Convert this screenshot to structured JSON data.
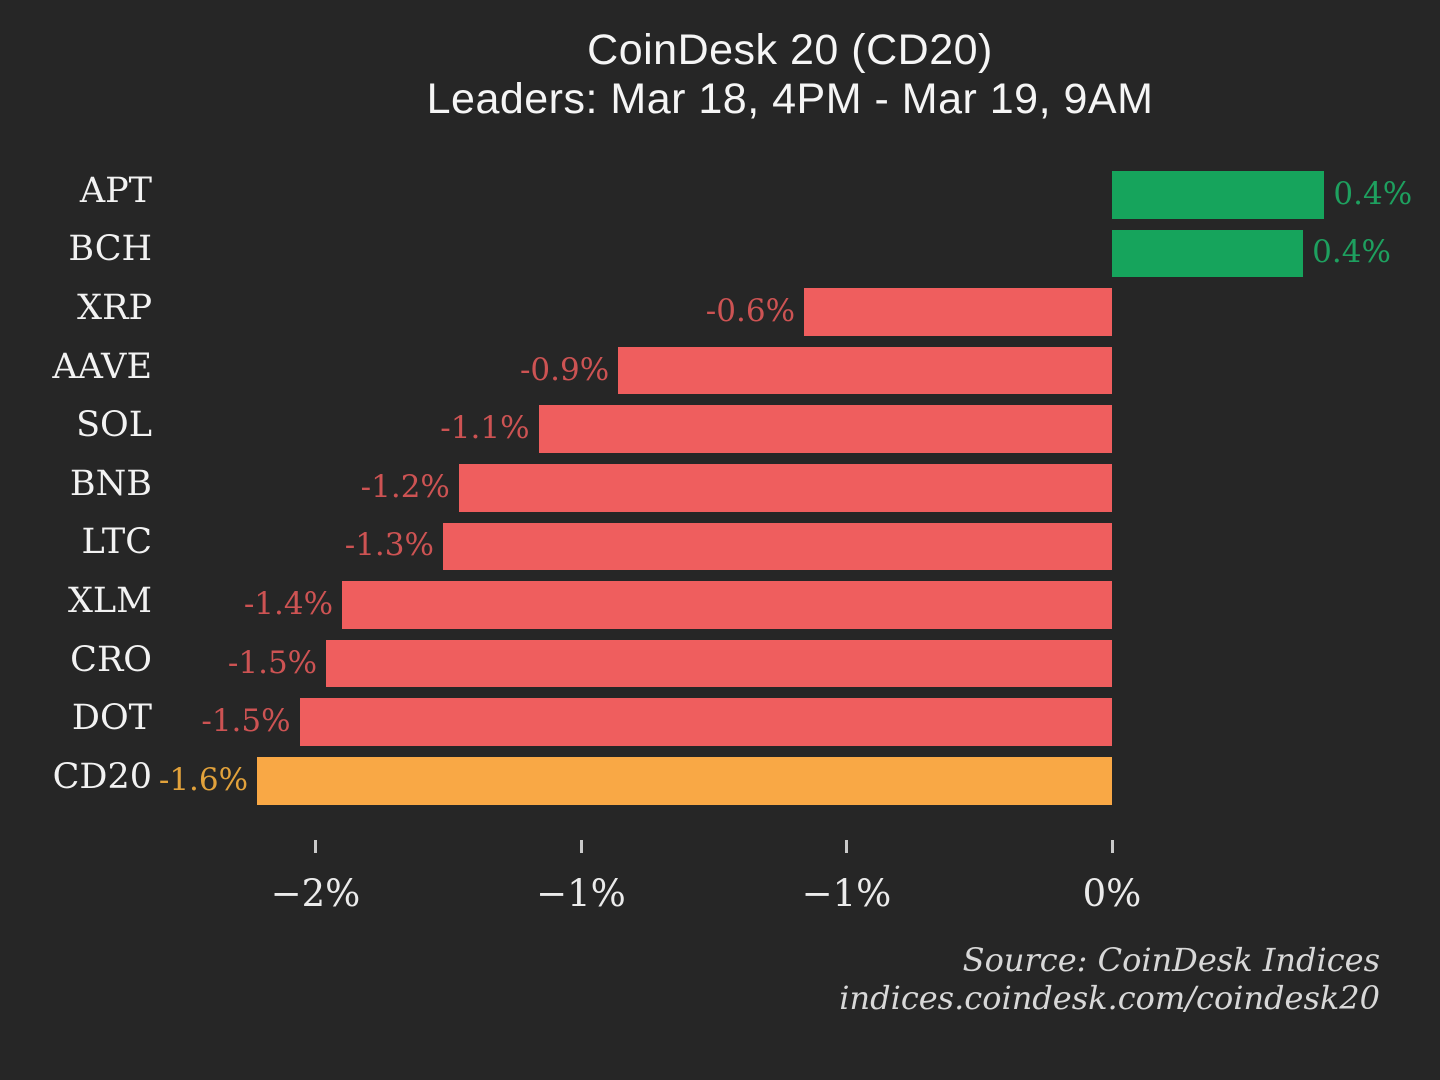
{
  "title": "CoinDesk 20 (CD20)",
  "subtitle": "Leaders: Mar 18, 4PM - Mar 19, 9AM",
  "source": {
    "line1": "Source: CoinDesk Indices",
    "line2": "indices.coindesk.com/coindesk20"
  },
  "colors": {
    "background": "#262626",
    "bar_negative": "#ef5e5e",
    "bar_positive": "#16a45c",
    "bar_highlight": "#f9a845",
    "label_negative": "#cd5353",
    "label_positive": "#1ea05f",
    "label_highlight": "#e2a23b",
    "text_primary": "#f2f2f2",
    "axis_tick": "#c9c9c9"
  },
  "chart_data": {
    "type": "bar",
    "orientation": "horizontal",
    "title": "CoinDesk 20 (CD20)",
    "subtitle": "Leaders: Mar 18, 4PM - Mar 19, 9AM",
    "xlabel": "",
    "ylabel": "",
    "xlim": [
      -1.66,
      0.62
    ],
    "grid": false,
    "legend": false,
    "highlight_category": "CD20",
    "categories": [
      "APT",
      "BCH",
      "XRP",
      "AAVE",
      "SOL",
      "BNB",
      "LTC",
      "XLM",
      "CRO",
      "DOT",
      "CD20"
    ],
    "items": [
      {
        "name": "APT",
        "value": 0.4,
        "label": "0.4%",
        "bar_pct": 0.4
      },
      {
        "name": "BCH",
        "value": 0.4,
        "label": "0.4%",
        "bar_pct": 0.36
      },
      {
        "name": "XRP",
        "value": -0.6,
        "label": "-0.6%",
        "bar_pct": -0.58
      },
      {
        "name": "AAVE",
        "value": -0.9,
        "label": "-0.9%",
        "bar_pct": -0.93
      },
      {
        "name": "SOL",
        "value": -1.1,
        "label": "-1.1%",
        "bar_pct": -1.08
      },
      {
        "name": "BNB",
        "value": -1.2,
        "label": "-1.2%",
        "bar_pct": -1.23
      },
      {
        "name": "LTC",
        "value": -1.3,
        "label": "-1.3%",
        "bar_pct": -1.26
      },
      {
        "name": "XLM",
        "value": -1.4,
        "label": "-1.4%",
        "bar_pct": -1.45
      },
      {
        "name": "CRO",
        "value": -1.5,
        "label": "-1.5%",
        "bar_pct": -1.48
      },
      {
        "name": "DOT",
        "value": -1.5,
        "label": "-1.5%",
        "bar_pct": -1.53
      },
      {
        "name": "CD20",
        "value": -1.6,
        "label": "-1.6%",
        "bar_pct": -1.61
      }
    ],
    "x_ticks": [
      {
        "value": -1.5,
        "label": "−2%"
      },
      {
        "value": -1.0,
        "label": "−1%"
      },
      {
        "value": -0.5,
        "label": "−1%"
      },
      {
        "value": 0.0,
        "label": "0%"
      }
    ]
  }
}
